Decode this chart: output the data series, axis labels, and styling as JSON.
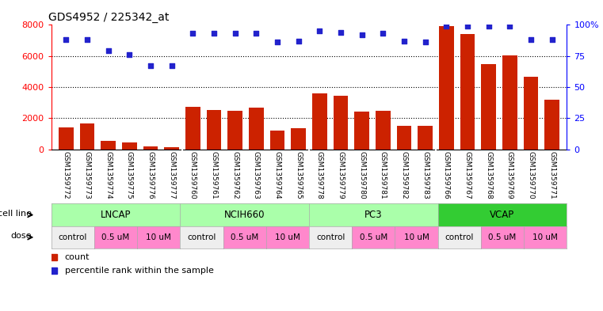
{
  "title": "GDS4952 / 225342_at",
  "samples": [
    "GSM1359772",
    "GSM1359773",
    "GSM1359774",
    "GSM1359775",
    "GSM1359776",
    "GSM1359777",
    "GSM1359760",
    "GSM1359761",
    "GSM1359762",
    "GSM1359763",
    "GSM1359764",
    "GSM1359765",
    "GSM1359778",
    "GSM1359779",
    "GSM1359780",
    "GSM1359781",
    "GSM1359782",
    "GSM1359783",
    "GSM1359766",
    "GSM1359767",
    "GSM1359768",
    "GSM1359769",
    "GSM1359770",
    "GSM1359771"
  ],
  "counts": [
    1400,
    1650,
    520,
    450,
    170,
    130,
    2750,
    2550,
    2450,
    2700,
    1200,
    1380,
    3600,
    3450,
    2400,
    2450,
    1500,
    1530,
    7900,
    7400,
    5500,
    6050,
    4650,
    3200
  ],
  "percentile_ranks": [
    88,
    88,
    79,
    76,
    67,
    67,
    93,
    93,
    93,
    93,
    86,
    87,
    95,
    94,
    92,
    93,
    87,
    86,
    99,
    99,
    99,
    99,
    88,
    88
  ],
  "cell_line_groups": [
    {
      "name": "LNCAP",
      "start": 0,
      "end": 6,
      "light": true
    },
    {
      "name": "NCIH660",
      "start": 6,
      "end": 12,
      "light": true
    },
    {
      "name": "PC3",
      "start": 12,
      "end": 18,
      "light": true
    },
    {
      "name": "VCAP",
      "start": 18,
      "end": 24,
      "light": false
    }
  ],
  "dose_groups": [
    {
      "label": "control",
      "start": 0,
      "end": 2,
      "pink": false
    },
    {
      "label": "0.5 uM",
      "start": 2,
      "end": 4,
      "pink": true
    },
    {
      "label": "10 uM",
      "start": 4,
      "end": 6,
      "pink": true
    },
    {
      "label": "control",
      "start": 6,
      "end": 8,
      "pink": false
    },
    {
      "label": "0.5 uM",
      "start": 8,
      "end": 10,
      "pink": true
    },
    {
      "label": "10 uM",
      "start": 10,
      "end": 12,
      "pink": true
    },
    {
      "label": "control",
      "start": 12,
      "end": 14,
      "pink": false
    },
    {
      "label": "0.5 uM",
      "start": 14,
      "end": 16,
      "pink": true
    },
    {
      "label": "10 uM",
      "start": 16,
      "end": 18,
      "pink": true
    },
    {
      "label": "control",
      "start": 18,
      "end": 20,
      "pink": false
    },
    {
      "label": "0.5 uM",
      "start": 20,
      "end": 22,
      "pink": true
    },
    {
      "label": "10 uM",
      "start": 22,
      "end": 24,
      "pink": true
    }
  ],
  "bar_color": "#CC2200",
  "dot_color": "#2222CC",
  "cl_light_color": "#aaffaa",
  "cl_dark_color": "#33cc33",
  "dose_control_color": "#eeeeee",
  "dose_pink_color": "#ff88cc",
  "tick_label_bg": "#dddddd",
  "ylim_left": [
    0,
    8000
  ],
  "ylim_right": [
    0,
    100
  ],
  "yticks_left": [
    0,
    2000,
    4000,
    6000,
    8000
  ],
  "yticks_right": [
    0,
    25,
    50,
    75,
    100
  ],
  "bg_color": "#ffffff"
}
